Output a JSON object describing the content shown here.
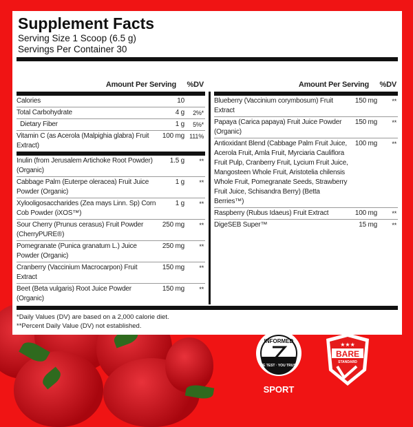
{
  "title": "Supplement Facts",
  "serving_size": "Serving Size 1 Scoop (6.5 g)",
  "servings_per_container": "Servings Per Container 30",
  "header": {
    "amount": "Amount Per Serving",
    "dv": "%DV"
  },
  "left_top": [
    {
      "name": "Calories",
      "amount": "10",
      "dv": ""
    },
    {
      "name": "Total Carbohydrate",
      "amount": "4 g",
      "dv": "2%*"
    },
    {
      "name": "  Dietary Fiber",
      "amount": "1 g",
      "dv": "5%*"
    },
    {
      "name": "Vitamin C (as Acerola (Malpighia glabra) Fruit Extract)",
      "amount": "100 mg",
      "dv": "111%"
    }
  ],
  "left_bottom": [
    {
      "name": "Inulin (from Jerusalem Artichoke Root Powder) (Organic)",
      "amount": "1.5 g",
      "dv": "**"
    },
    {
      "name": "Cabbage Palm (Euterpe oleracea) Fruit Juice Powder (Organic)",
      "amount": "1 g",
      "dv": "**"
    },
    {
      "name": "Xylooligosaccharides (Zea mays Linn. Sp) Corn Cob Powder (iXOS™)",
      "amount": "1 g",
      "dv": "**"
    },
    {
      "name": "Sour Cherry (Prunus cerasus) Fruit Powder (CherryPURE®)",
      "amount": "250 mg",
      "dv": "**"
    },
    {
      "name": "Pomegranate (Punica granatum L.) Juice Powder (Organic)",
      "amount": "250 mg",
      "dv": "**"
    },
    {
      "name": "Cranberry (Vaccinium Macrocarpon) Fruit Extract",
      "amount": "150 mg",
      "dv": "**"
    },
    {
      "name": "Beet (Beta vulgaris) Root Juice Powder (Organic)",
      "amount": "150 mg",
      "dv": "**"
    }
  ],
  "right": [
    {
      "name": "Blueberry (Vaccinium corymbosum) Fruit Extract",
      "amount": "150 mg",
      "dv": "**"
    },
    {
      "name": "Papaya (Carica papaya) Fruit Juice Powder (Organic)",
      "amount": "150 mg",
      "dv": "**"
    },
    {
      "name": "Antioxidant Blend (Cabbage Palm Fruit Juice, Acerola Fruit, Amla Fruit, Myrciaria Cauliflora Fruit Pulp, Cranberry Fruit, Lycium Fruit Juice, Mangosteen Whole Fruit, Aristotelia chilensis Whole Fruit, Pomegranate Seeds, Strawberry Fruit Juice, Schisandra Berry) (Betta Berries™)",
      "amount": "100 mg",
      "dv": "**"
    },
    {
      "name": "Raspberry (Rubus Idaeus) Fruit Extract",
      "amount": "100 mg",
      "dv": "**"
    },
    {
      "name": "DigeSEB Super™",
      "amount": "15 mg",
      "dv": "**"
    }
  ],
  "footnotes": [
    "*Daily Values (DV) are based on a 2,000 calorie diet.",
    "**Percent Daily Value (DV) not established."
  ],
  "logos": {
    "informed": "INFORMED",
    "informed_sub": "WE TEST · YOU TRUST",
    "sport": "SPORT",
    "bare": "BARE",
    "bare_sub": "STANDARD"
  },
  "colors": {
    "background": "#f01414",
    "panel": "#ffffff",
    "text": "#111111"
  }
}
